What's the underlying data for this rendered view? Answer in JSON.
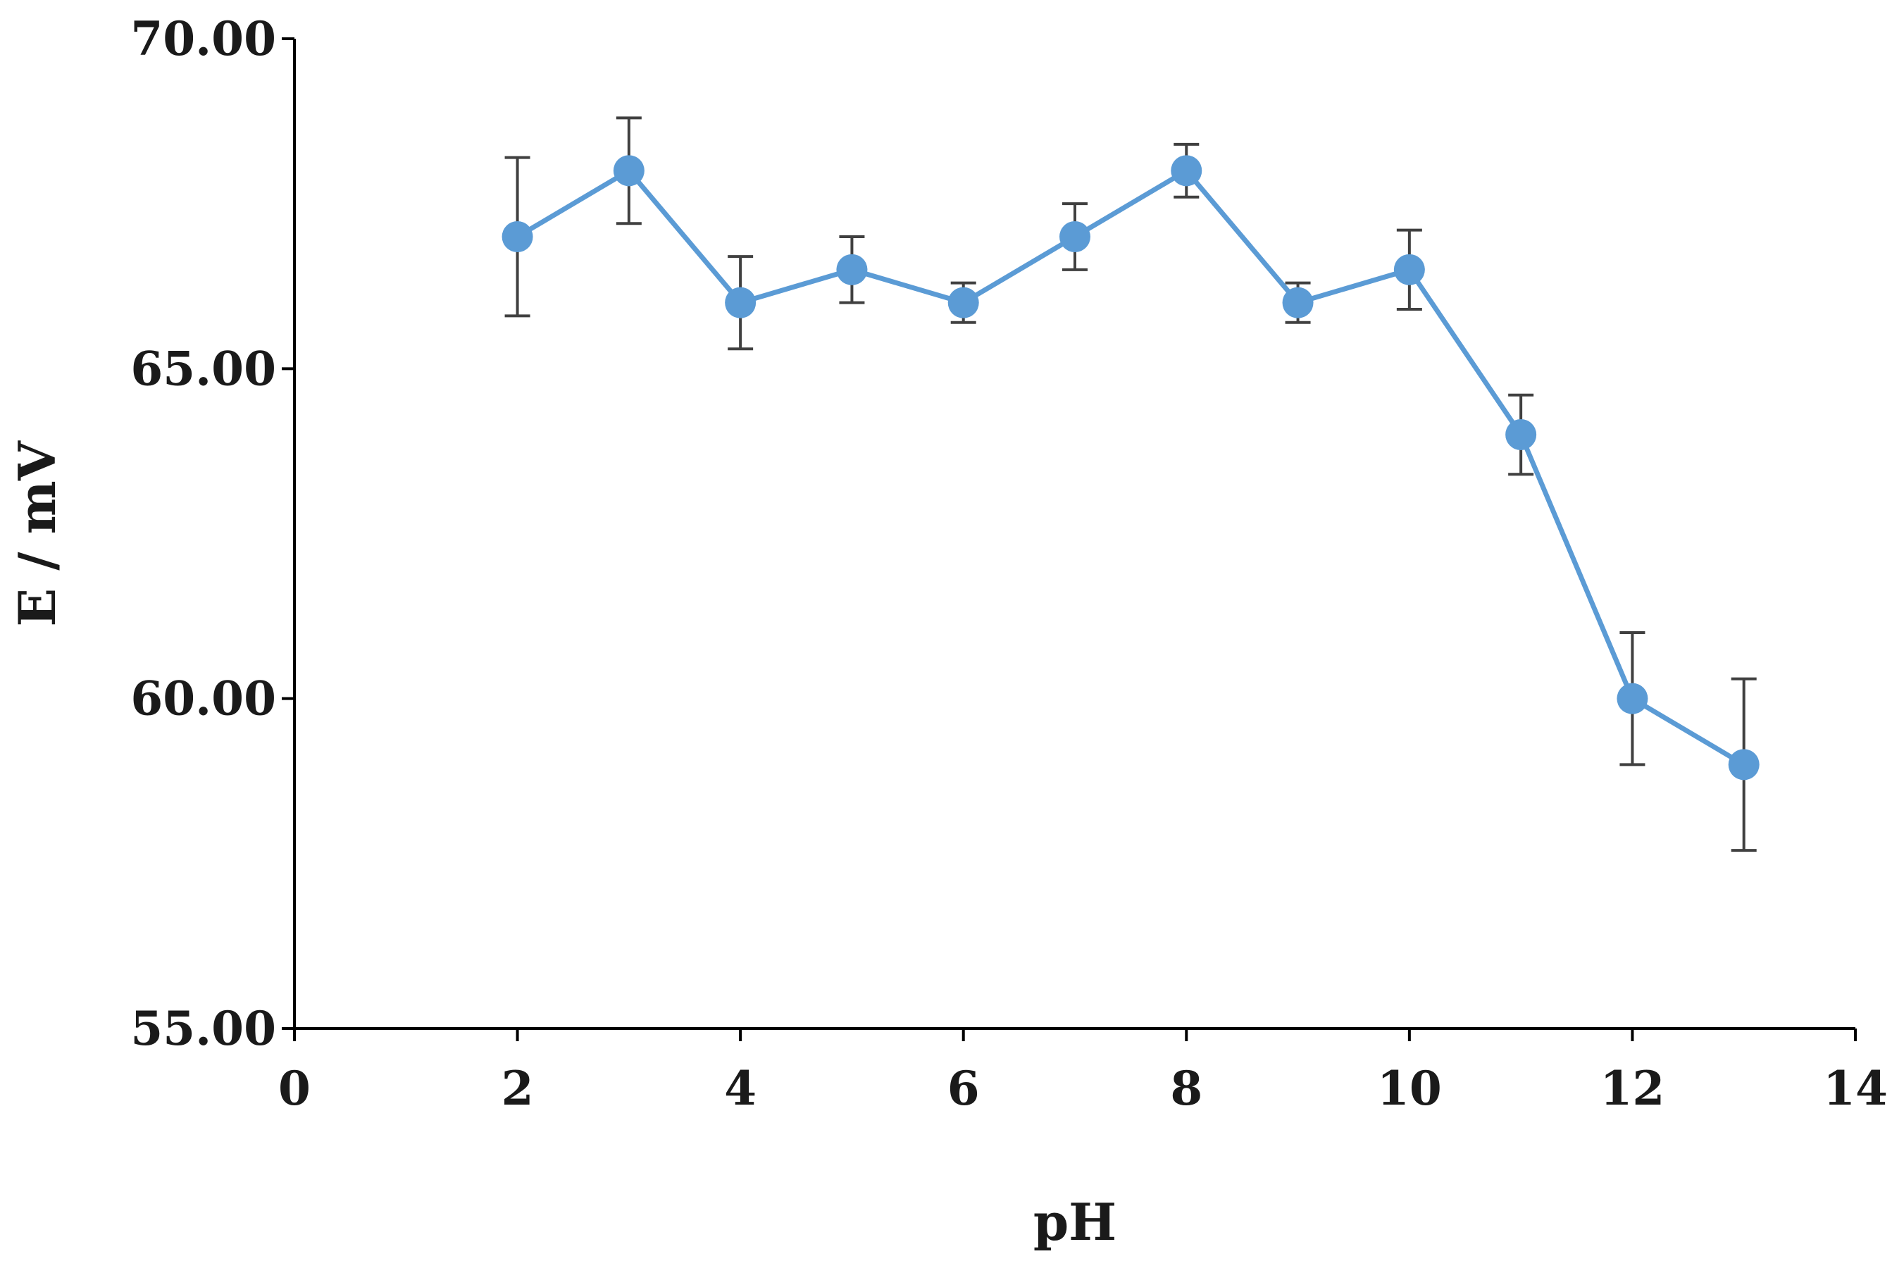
{
  "chart_data": {
    "type": "line",
    "title": "",
    "xlabel": "pH",
    "ylabel": "E / mV",
    "xlim": [
      0,
      14
    ],
    "ylim": [
      55,
      70
    ],
    "x_ticks": [
      0,
      2,
      4,
      6,
      8,
      10,
      12,
      14
    ],
    "x_tick_labels": [
      "0",
      "2",
      "4",
      "6",
      "8",
      "10",
      "12",
      "14"
    ],
    "y_ticks": [
      55,
      60,
      65,
      70
    ],
    "y_tick_labels": [
      "55.00",
      "60.00",
      "65.00",
      "70.00"
    ],
    "grid": false,
    "legend": "none",
    "series_color": "#5b9bd5",
    "error_bar_color": "#404040",
    "series": [
      {
        "x": [
          2,
          3,
          4,
          5,
          6,
          7,
          8,
          9,
          10,
          11,
          12,
          13
        ],
        "y": [
          67.0,
          68.0,
          66.0,
          66.5,
          66.0,
          67.0,
          68.0,
          66.0,
          66.5,
          64.0,
          60.0,
          59.0
        ],
        "err_plus": [
          1.2,
          0.8,
          0.7,
          0.5,
          0.3,
          0.5,
          0.4,
          0.3,
          0.6,
          0.6,
          1.0,
          1.3
        ],
        "err_minus": [
          1.2,
          0.8,
          0.7,
          0.5,
          0.3,
          0.5,
          0.4,
          0.3,
          0.6,
          0.6,
          1.0,
          1.3
        ]
      }
    ]
  }
}
